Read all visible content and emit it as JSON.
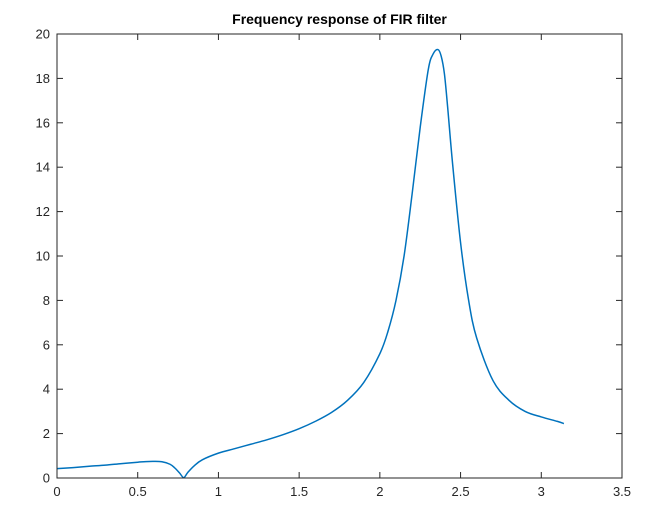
{
  "chart_data": {
    "type": "line",
    "title": "Frequency response of FIR filter",
    "xlabel": "",
    "ylabel": "",
    "xlim": [
      0,
      3.5
    ],
    "ylim": [
      0,
      20
    ],
    "xticks": [
      0,
      0.5,
      1,
      1.5,
      2,
      2.5,
      3,
      3.5
    ],
    "xtick_labels": [
      "0",
      "0.5",
      "1",
      "1.5",
      "2",
      "2.5",
      "3",
      "3.5"
    ],
    "yticks": [
      0,
      2,
      4,
      6,
      8,
      10,
      12,
      14,
      16,
      18,
      20
    ],
    "ytick_labels": [
      "0",
      "2",
      "4",
      "6",
      "8",
      "10",
      "12",
      "14",
      "16",
      "18",
      "20"
    ],
    "grid": false,
    "box": true,
    "colors": {
      "line": "#0072BD",
      "axes": "#262626"
    },
    "series": [
      {
        "x": [
          0,
          0.1,
          0.2,
          0.3,
          0.4,
          0.5,
          0.55,
          0.6,
          0.65,
          0.7,
          0.73,
          0.76,
          0.785,
          0.81,
          0.85,
          0.9,
          1.0,
          1.1,
          1.2,
          1.3,
          1.4,
          1.5,
          1.6,
          1.7,
          1.8,
          1.9,
          2.0,
          2.05,
          2.1,
          2.15,
          2.2,
          2.25,
          2.3,
          2.33,
          2.36,
          2.38,
          2.4,
          2.42,
          2.45,
          2.5,
          2.55,
          2.6,
          2.7,
          2.8,
          2.9,
          3.0,
          3.1,
          3.14
        ],
        "y": [
          0.42,
          0.47,
          0.53,
          0.58,
          0.65,
          0.71,
          0.74,
          0.75,
          0.73,
          0.62,
          0.45,
          0.22,
          0.02,
          0.25,
          0.55,
          0.82,
          1.12,
          1.32,
          1.52,
          1.72,
          1.95,
          2.22,
          2.55,
          2.95,
          3.5,
          4.3,
          5.6,
          6.6,
          8.0,
          10.0,
          12.8,
          15.8,
          18.4,
          19.1,
          19.3,
          19.0,
          18.2,
          16.7,
          14.2,
          10.6,
          8.0,
          6.3,
          4.4,
          3.5,
          3.0,
          2.75,
          2.55,
          2.45
        ]
      }
    ]
  }
}
